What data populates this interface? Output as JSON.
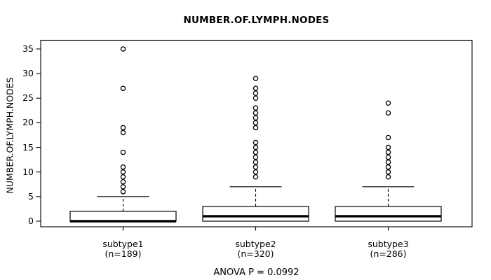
{
  "title": "NUMBER.OF.LYMPH.NODES",
  "annotation": "ANOVA P = 0.0992",
  "chart_data": {
    "type": "boxplot",
    "title": "NUMBER.OF.LYMPH.NODES",
    "ylabel": "NUMBER.OF.LYMPH.NODES",
    "xlabel": "",
    "ylim": [
      0,
      35
    ],
    "yticks": [
      0,
      5,
      10,
      15,
      20,
      25,
      30,
      35
    ],
    "grid": false,
    "annotation": "ANOVA P = 0.0992",
    "colors": {
      "line": "#000000",
      "box_fill": "#ffffff",
      "background": "#ffffff"
    },
    "groups": [
      {
        "label": "subtype1",
        "sublabel": "(n=189)",
        "n": 189,
        "q1": 0,
        "median": 0,
        "q3": 2,
        "whisker_low": 0,
        "whisker_high": 5,
        "outliers": [
          6,
          7,
          8,
          9,
          10,
          11,
          14,
          18,
          19,
          27,
          35
        ]
      },
      {
        "label": "subtype2",
        "sublabel": "(n=320)",
        "n": 320,
        "q1": 0,
        "median": 1,
        "q3": 3,
        "whisker_low": 0,
        "whisker_high": 7,
        "outliers": [
          9,
          10,
          11,
          12,
          13,
          14,
          15,
          16,
          19,
          20,
          21,
          22,
          23,
          25,
          26,
          27,
          29
        ]
      },
      {
        "label": "subtype3",
        "sublabel": "(n=286)",
        "n": 286,
        "q1": 0,
        "median": 1,
        "q3": 3,
        "whisker_low": 0,
        "whisker_high": 7,
        "outliers": [
          9,
          10,
          11,
          12,
          13,
          14,
          15,
          17,
          22,
          24
        ]
      }
    ]
  }
}
